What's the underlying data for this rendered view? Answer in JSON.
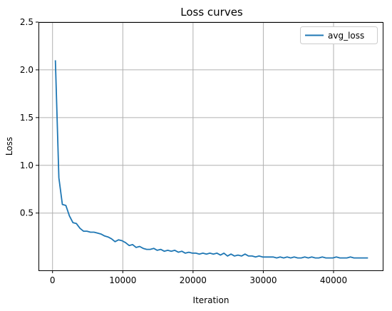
{
  "chart_data": {
    "type": "line",
    "title": "Loss curves",
    "xlabel": "Iteration",
    "ylabel": "Loss",
    "xlim": [
      -2000,
      47000
    ],
    "ylim": [
      -0.1,
      2.5
    ],
    "xticks": [
      0,
      10000,
      20000,
      30000,
      40000
    ],
    "xtick_labels": [
      "0",
      "10000",
      "20000",
      "30000",
      "40000"
    ],
    "yticks": [
      0.5,
      1.0,
      1.5,
      2.0,
      2.5
    ],
    "ytick_labels": [
      "0.5",
      "1.0",
      "1.5",
      "2.0",
      "2.5"
    ],
    "grid": true,
    "legend_position": "top-right",
    "series": [
      {
        "name": "avg_loss",
        "color": "#1f77b4",
        "x": [
          400,
          900,
          1400,
          1900,
          2400,
          2900,
          3400,
          3900,
          4400,
          4900,
          5400,
          5900,
          6400,
          6900,
          7400,
          7900,
          8400,
          8900,
          9400,
          9900,
          10400,
          10900,
          11400,
          11900,
          12400,
          12900,
          13400,
          13900,
          14400,
          14900,
          15400,
          15900,
          16400,
          16900,
          17400,
          17900,
          18400,
          18900,
          19400,
          19900,
          20400,
          20900,
          21400,
          21900,
          22400,
          22900,
          23400,
          23900,
          24400,
          24900,
          25400,
          25900,
          26400,
          26900,
          27400,
          27900,
          28400,
          28900,
          29400,
          29900,
          30400,
          30900,
          31400,
          31900,
          32400,
          32900,
          33400,
          33900,
          34400,
          34900,
          35400,
          35900,
          36400,
          36900,
          37400,
          37900,
          38400,
          38900,
          39400,
          39900,
          40400,
          40900,
          41400,
          41900,
          42400,
          42900,
          43400,
          43900,
          44400,
          44900
        ],
        "y": [
          2.1,
          0.87,
          0.59,
          0.58,
          0.47,
          0.4,
          0.39,
          0.34,
          0.31,
          0.31,
          0.3,
          0.3,
          0.29,
          0.28,
          0.26,
          0.25,
          0.23,
          0.2,
          0.22,
          0.21,
          0.19,
          0.16,
          0.17,
          0.14,
          0.15,
          0.13,
          0.12,
          0.12,
          0.13,
          0.11,
          0.12,
          0.1,
          0.11,
          0.1,
          0.11,
          0.09,
          0.1,
          0.08,
          0.09,
          0.08,
          0.08,
          0.07,
          0.08,
          0.07,
          0.08,
          0.07,
          0.08,
          0.06,
          0.08,
          0.05,
          0.07,
          0.05,
          0.06,
          0.05,
          0.07,
          0.05,
          0.05,
          0.04,
          0.05,
          0.04,
          0.04,
          0.04,
          0.04,
          0.03,
          0.04,
          0.03,
          0.04,
          0.03,
          0.04,
          0.03,
          0.03,
          0.04,
          0.03,
          0.04,
          0.03,
          0.03,
          0.04,
          0.03,
          0.03,
          0.03,
          0.04,
          0.03,
          0.03,
          0.03,
          0.04,
          0.03,
          0.03,
          0.03,
          0.03,
          0.03
        ]
      }
    ]
  }
}
